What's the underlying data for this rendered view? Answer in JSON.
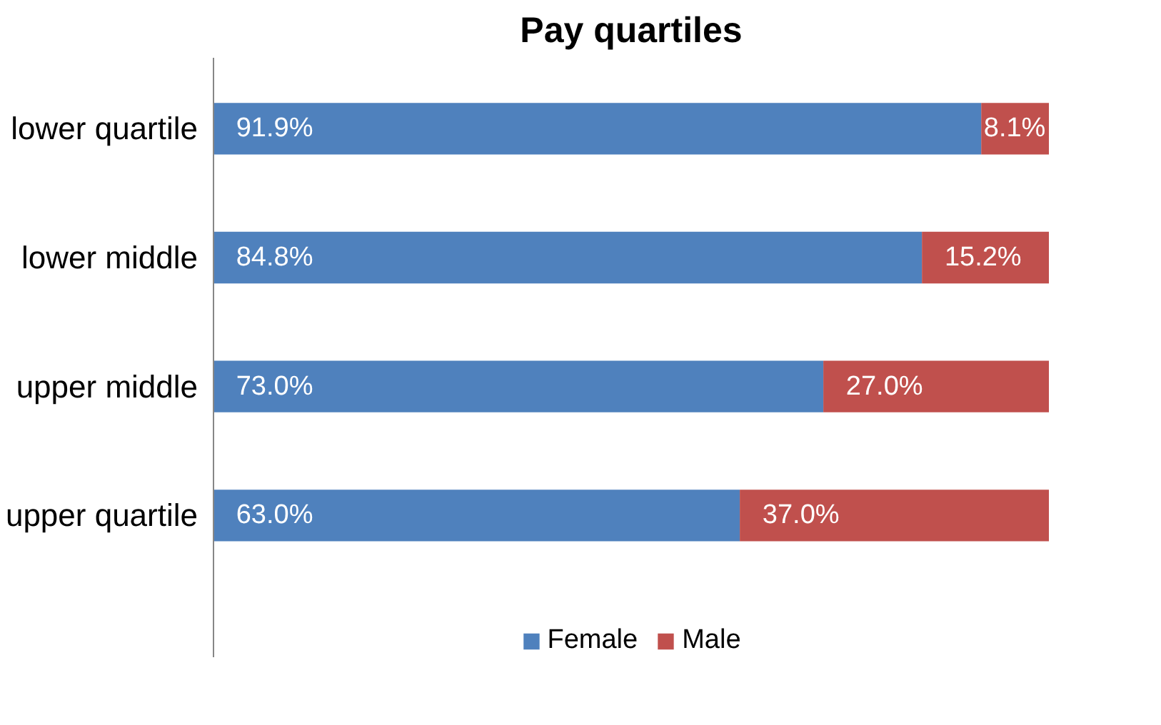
{
  "chart_data": {
    "type": "bar",
    "title": "Pay quartiles",
    "orientation": "horizontal",
    "stacked": true,
    "tick_labels": "y",
    "legend": "bottom",
    "grid": false,
    "categories": [
      "lower quartile",
      "lower middle",
      "upper middle",
      "upper quartile"
    ],
    "series": [
      {
        "name": "Female",
        "color": "#4f81bd",
        "values": [
          91.9,
          84.8,
          73.0,
          63.0
        ],
        "value_labels": [
          "91.9%",
          "84.8%",
          "73.0%",
          "63.0%"
        ]
      },
      {
        "name": "Male",
        "color": "#c0504d",
        "values": [
          8.1,
          15.2,
          27.0,
          37.0
        ],
        "value_labels": [
          "8.1%",
          "15.2%",
          "27.0%",
          "37.0%"
        ]
      }
    ]
  }
}
